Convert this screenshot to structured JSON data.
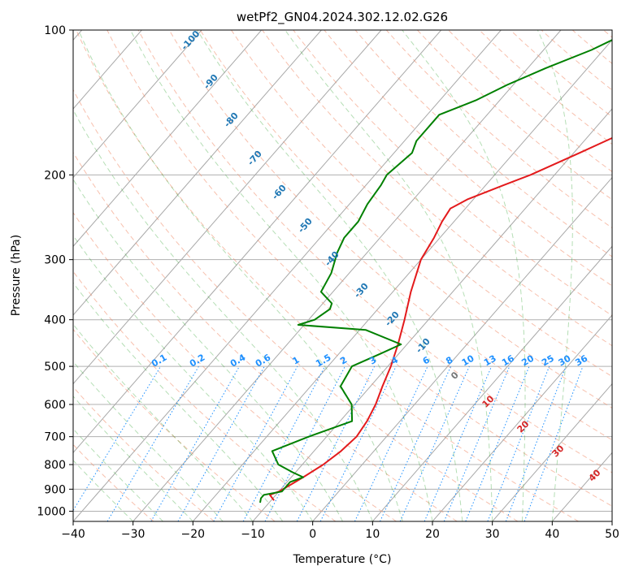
{
  "chart_data": {
    "type": "line",
    "title": "wetPf2_GN04.2024.302.12.02.G26",
    "xlabel": "Temperature (°C)",
    "ylabel": "Pressure (hPa)",
    "xlim": [
      -40,
      50
    ],
    "ylim": [
      1050,
      100
    ],
    "y_scale": "log",
    "skew": true,
    "grid": true,
    "x_ticks": [
      "−40",
      "−30",
      "−20",
      "−10",
      "0",
      "10",
      "20",
      "30",
      "40",
      "50"
    ],
    "y_ticks": [
      "100",
      "200",
      "300",
      "400",
      "500",
      "600",
      "700",
      "800",
      "900",
      "1000"
    ],
    "series": [
      {
        "color": "#e31a1c",
        "points": [
          [
            950,
            -9.5
          ],
          [
            925,
            -11
          ],
          [
            910,
            -10
          ],
          [
            880,
            -9
          ],
          [
            850,
            -8
          ],
          [
            800,
            -6.5
          ],
          [
            750,
            -5.5
          ],
          [
            700,
            -5
          ],
          [
            650,
            -5.5
          ],
          [
            600,
            -6.5
          ],
          [
            550,
            -8
          ],
          [
            500,
            -9.5
          ],
          [
            450,
            -11.5
          ],
          [
            400,
            -14
          ],
          [
            350,
            -17
          ],
          [
            300,
            -20
          ],
          [
            270,
            -21
          ],
          [
            250,
            -22
          ],
          [
            235,
            -22.5
          ],
          [
            225,
            -21
          ],
          [
            210,
            -17
          ],
          [
            200,
            -14
          ],
          [
            180,
            -9
          ],
          [
            165,
            -5
          ],
          [
            150,
            -1
          ],
          [
            130,
            10
          ],
          [
            115,
            20
          ],
          [
            105,
            25
          ],
          [
            100,
            26
          ]
        ]
      },
      {
        "color": "#008000",
        "points": [
          [
            960,
            -11.5
          ],
          [
            940,
            -12
          ],
          [
            925,
            -12
          ],
          [
            910,
            -9.5
          ],
          [
            890,
            -9.5
          ],
          [
            870,
            -9.5
          ],
          [
            850,
            -8
          ],
          [
            830,
            -10.5
          ],
          [
            800,
            -14
          ],
          [
            750,
            -17
          ],
          [
            700,
            -13
          ],
          [
            650,
            -8
          ],
          [
            600,
            -10.5
          ],
          [
            550,
            -15
          ],
          [
            500,
            -16
          ],
          [
            470,
            -13
          ],
          [
            450,
            -11
          ],
          [
            420,
            -19
          ],
          [
            410,
            -31
          ],
          [
            400,
            -29
          ],
          [
            380,
            -28
          ],
          [
            370,
            -28.5
          ],
          [
            350,
            -32
          ],
          [
            320,
            -33
          ],
          [
            290,
            -35
          ],
          [
            270,
            -36
          ],
          [
            250,
            -36
          ],
          [
            230,
            -37
          ],
          [
            210,
            -37.5
          ],
          [
            200,
            -38
          ],
          [
            180,
            -37
          ],
          [
            170,
            -38
          ],
          [
            150,
            -38
          ],
          [
            140,
            -34
          ],
          [
            130,
            -31
          ],
          [
            120,
            -27
          ],
          [
            110,
            -22
          ],
          [
            100,
            -18
          ]
        ]
      }
    ],
    "dry_adiabat_labels": [
      "-100",
      "-90",
      "-80",
      "-70",
      "-60",
      "-50",
      "-40",
      "-30",
      "-20",
      "-10"
    ],
    "mixing_ratio_labels": [
      "0.1",
      "0.2",
      "0.4",
      "0.6",
      "1",
      "1.5",
      "2",
      "3",
      "4",
      "6",
      "8",
      "10",
      "13",
      "16",
      "20",
      "25",
      "30",
      "36"
    ],
    "moist_adiabat_labels": [
      "10",
      "20",
      "30",
      "40"
    ],
    "wet_bulb_zero_label": "0",
    "colors": {
      "temperature": "#e31a1c",
      "dewpoint": "#008000",
      "dry_adiabats": "#f08c6a",
      "moist_adiabats": "#2ca02c",
      "mixing_ratio": "#1e90ff",
      "isotherms": "#808080",
      "dry_adiabat_labels": "#1f77b4",
      "moist_adiabat_labels": "#d62728"
    }
  }
}
